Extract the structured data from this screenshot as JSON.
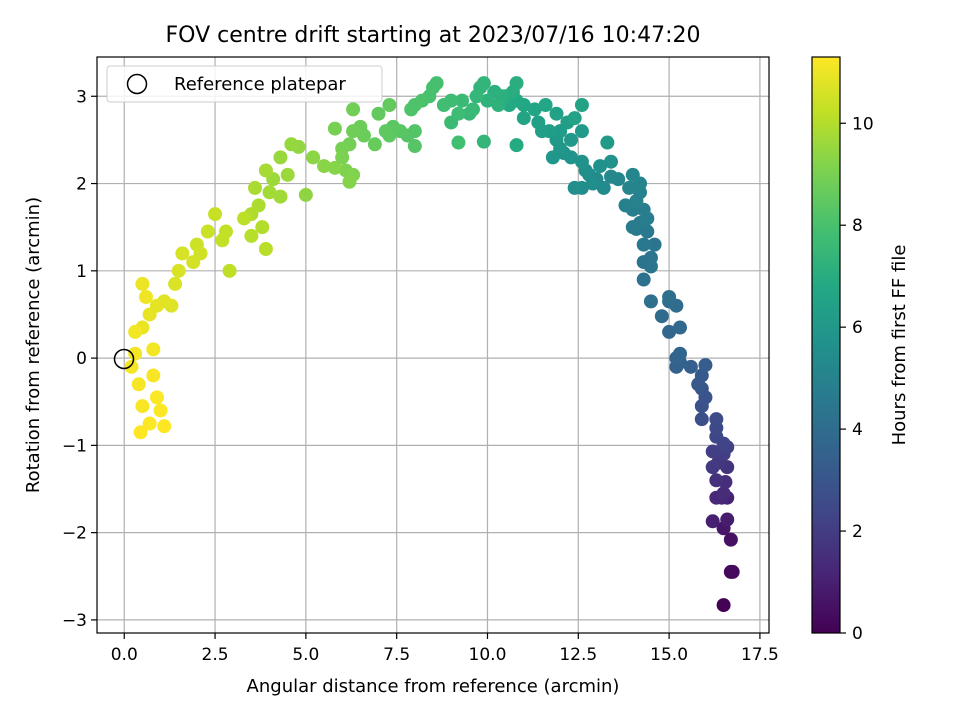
{
  "chart_data": {
    "type": "scatter",
    "title": "FOV centre drift starting at 2023/07/16 10:47:20",
    "xlabel": "Angular distance from reference (arcmin)",
    "ylabel": "Rotation from reference (arcmin)",
    "colorbar_label": "Hours from first FF file",
    "xlim": [
      -0.75,
      17.75
    ],
    "ylim": [
      -3.15,
      3.45
    ],
    "clim": [
      0,
      11.3
    ],
    "xticks": [
      0.0,
      2.5,
      5.0,
      7.5,
      10.0,
      12.5,
      15.0,
      17.5
    ],
    "xtick_labels": [
      "0.0",
      "2.5",
      "5.0",
      "7.5",
      "10.0",
      "12.5",
      "15.0",
      "17.5"
    ],
    "yticks": [
      -3,
      -2,
      -1,
      0,
      1,
      2,
      3
    ],
    "ytick_labels": [
      "−3",
      "−2",
      "−1",
      "0",
      "1",
      "2",
      "3"
    ],
    "cticks": [
      0,
      2,
      4,
      6,
      8,
      10
    ],
    "ctick_labels": [
      "0",
      "2",
      "4",
      "6",
      "8",
      "10"
    ],
    "colormap": "viridis",
    "grid": true,
    "legend": {
      "placement": "upper-left",
      "entries": [
        "Reference platepar"
      ]
    },
    "reference": {
      "x": 0,
      "y": 0,
      "label": "Reference platepar"
    },
    "series": [
      {
        "name": "FOV centre",
        "points": [
          [
            16.5,
            -2.83,
            0.05
          ],
          [
            16.7,
            -2.45,
            0.2
          ],
          [
            16.75,
            -2.45,
            0.3
          ],
          [
            16.7,
            -2.08,
            0.5
          ],
          [
            16.5,
            -1.95,
            0.7
          ],
          [
            16.6,
            -1.85,
            0.9
          ],
          [
            16.2,
            -1.87,
            1.0
          ],
          [
            16.6,
            -1.6,
            1.1
          ],
          [
            16.45,
            -1.6,
            1.2
          ],
          [
            16.3,
            -1.6,
            1.3
          ],
          [
            16.5,
            -1.55,
            1.4
          ],
          [
            16.55,
            -1.42,
            1.5
          ],
          [
            16.3,
            -1.4,
            1.6
          ],
          [
            16.6,
            -1.25,
            1.7
          ],
          [
            16.35,
            -1.2,
            1.8
          ],
          [
            16.2,
            -1.25,
            1.9
          ],
          [
            16.5,
            -1.1,
            2.0
          ],
          [
            16.2,
            -1.07,
            2.1
          ],
          [
            16.6,
            -1.02,
            2.2
          ],
          [
            16.5,
            -0.98,
            2.3
          ],
          [
            16.3,
            -0.9,
            2.4
          ],
          [
            16.3,
            -0.8,
            2.5
          ],
          [
            16.3,
            -0.7,
            2.6
          ],
          [
            15.9,
            -0.7,
            2.7
          ],
          [
            15.9,
            -0.55,
            2.8
          ],
          [
            16.0,
            -0.45,
            2.9
          ],
          [
            15.9,
            -0.35,
            3.0
          ],
          [
            15.8,
            -0.3,
            3.1
          ],
          [
            15.9,
            -0.2,
            3.2
          ],
          [
            16.0,
            -0.08,
            3.3
          ],
          [
            15.6,
            -0.1,
            3.4
          ],
          [
            15.2,
            -0.1,
            3.5
          ],
          [
            15.3,
            -0.05,
            3.55
          ],
          [
            15.2,
            0.0,
            3.6
          ],
          [
            15.3,
            0.05,
            3.65
          ],
          [
            15.0,
            0.3,
            3.7
          ],
          [
            15.3,
            0.35,
            3.8
          ],
          [
            14.8,
            0.48,
            3.9
          ],
          [
            15.2,
            0.6,
            4.0
          ],
          [
            15.0,
            0.65,
            4.05
          ],
          [
            15.0,
            0.7,
            4.1
          ],
          [
            14.5,
            0.65,
            4.15
          ],
          [
            14.3,
            0.9,
            4.2
          ],
          [
            14.5,
            1.05,
            4.3
          ],
          [
            14.3,
            1.1,
            4.35
          ],
          [
            14.5,
            1.15,
            4.4
          ],
          [
            14.6,
            1.3,
            4.45
          ],
          [
            14.3,
            1.3,
            4.5
          ],
          [
            14.4,
            1.45,
            4.55
          ],
          [
            14.1,
            1.48,
            4.6
          ],
          [
            14.0,
            1.5,
            4.65
          ],
          [
            14.2,
            1.55,
            4.7
          ],
          [
            14.4,
            1.6,
            4.75
          ],
          [
            14.3,
            1.7,
            4.8
          ],
          [
            14.0,
            1.7,
            4.85
          ],
          [
            13.8,
            1.75,
            4.9
          ],
          [
            14.1,
            1.8,
            4.95
          ],
          [
            14.2,
            1.9,
            5.0
          ],
          [
            13.9,
            1.95,
            5.05
          ],
          [
            14.2,
            2.0,
            5.1
          ],
          [
            14.0,
            2.1,
            5.15
          ],
          [
            13.6,
            2.05,
            5.2
          ],
          [
            13.4,
            2.08,
            5.25
          ],
          [
            13.0,
            2.05,
            5.3
          ],
          [
            13.2,
            1.95,
            5.35
          ],
          [
            12.8,
            2.1,
            5.4
          ],
          [
            12.6,
            1.95,
            5.45
          ],
          [
            12.9,
            2.0,
            5.5
          ],
          [
            12.4,
            1.95,
            5.55
          ],
          [
            12.7,
            2.15,
            5.6
          ],
          [
            13.1,
            2.2,
            5.65
          ],
          [
            13.4,
            2.25,
            5.7
          ],
          [
            12.6,
            2.25,
            5.75
          ],
          [
            12.3,
            2.3,
            5.8
          ],
          [
            12.1,
            2.35,
            5.85
          ],
          [
            11.8,
            2.3,
            5.9
          ],
          [
            12.0,
            2.4,
            5.95
          ],
          [
            12.3,
            2.5,
            6.0
          ],
          [
            11.9,
            2.5,
            6.05
          ],
          [
            12.6,
            2.6,
            6.1
          ],
          [
            13.3,
            2.47,
            6.15
          ],
          [
            12.0,
            2.6,
            6.2
          ],
          [
            11.7,
            2.6,
            6.25
          ],
          [
            12.2,
            2.7,
            6.3
          ],
          [
            11.5,
            2.6,
            6.35
          ],
          [
            11.4,
            2.7,
            6.4
          ],
          [
            11.9,
            2.8,
            6.45
          ],
          [
            12.4,
            2.75,
            6.5
          ],
          [
            12.6,
            2.9,
            6.55
          ],
          [
            11.0,
            2.75,
            6.6
          ],
          [
            11.3,
            2.85,
            6.65
          ],
          [
            11.6,
            2.9,
            6.7
          ],
          [
            11.0,
            2.9,
            6.75
          ],
          [
            10.8,
            2.95,
            6.8
          ],
          [
            10.6,
            2.9,
            6.85
          ],
          [
            10.8,
            2.44,
            6.9
          ],
          [
            10.5,
            3.0,
            6.95
          ],
          [
            10.7,
            3.05,
            7.0
          ],
          [
            10.8,
            3.15,
            7.05
          ],
          [
            10.4,
            3.0,
            7.1
          ],
          [
            10.2,
            3.05,
            7.15
          ],
          [
            10.3,
            2.9,
            7.2
          ],
          [
            10.0,
            2.95,
            7.25
          ],
          [
            9.8,
            3.1,
            7.3
          ],
          [
            9.9,
            3.15,
            7.35
          ],
          [
            9.9,
            2.48,
            7.4
          ],
          [
            9.7,
            3.0,
            7.45
          ],
          [
            9.5,
            2.8,
            7.5
          ],
          [
            9.6,
            2.85,
            7.55
          ],
          [
            9.3,
            2.95,
            7.6
          ],
          [
            9.0,
            2.7,
            7.65
          ],
          [
            9.2,
            2.8,
            7.7
          ],
          [
            9.0,
            2.95,
            7.75
          ],
          [
            8.8,
            2.9,
            7.8
          ],
          [
            9.2,
            2.47,
            7.85
          ],
          [
            8.6,
            3.15,
            7.9
          ],
          [
            8.5,
            3.1,
            7.95
          ],
          [
            8.4,
            3.0,
            8.0
          ],
          [
            8.2,
            2.95,
            8.05
          ],
          [
            8.0,
            2.9,
            8.1
          ],
          [
            7.9,
            2.85,
            8.15
          ],
          [
            8.0,
            2.6,
            8.2
          ],
          [
            7.8,
            2.55,
            8.25
          ],
          [
            8.0,
            2.43,
            8.3
          ],
          [
            7.6,
            2.6,
            8.35
          ],
          [
            7.4,
            2.65,
            8.4
          ],
          [
            7.3,
            2.55,
            8.45
          ],
          [
            7.2,
            2.6,
            8.5
          ],
          [
            7.0,
            2.8,
            8.55
          ],
          [
            7.3,
            2.9,
            8.6
          ],
          [
            6.9,
            2.45,
            8.65
          ],
          [
            6.6,
            2.55,
            8.7
          ],
          [
            6.5,
            2.65,
            8.75
          ],
          [
            6.3,
            2.6,
            8.8
          ],
          [
            6.3,
            2.85,
            8.85
          ],
          [
            6.2,
            2.45,
            8.9
          ],
          [
            6.0,
            2.4,
            8.95
          ],
          [
            5.8,
            2.63,
            9.0
          ],
          [
            6.0,
            2.3,
            9.05
          ],
          [
            6.1,
            2.15,
            9.1
          ],
          [
            6.3,
            2.1,
            9.15
          ],
          [
            6.2,
            2.02,
            9.2
          ],
          [
            5.8,
            2.18,
            9.25
          ],
          [
            5.5,
            2.2,
            9.3
          ],
          [
            5.2,
            2.3,
            9.35
          ],
          [
            5.0,
            1.87,
            9.4
          ],
          [
            4.8,
            2.42,
            9.45
          ],
          [
            4.6,
            2.45,
            9.5
          ],
          [
            4.3,
            2.3,
            9.55
          ],
          [
            4.5,
            2.1,
            9.6
          ],
          [
            4.1,
            2.05,
            9.65
          ],
          [
            4.3,
            1.85,
            9.7
          ],
          [
            4.0,
            1.9,
            9.75
          ],
          [
            3.9,
            2.15,
            9.8
          ],
          [
            3.6,
            1.95,
            9.85
          ],
          [
            3.7,
            1.75,
            9.9
          ],
          [
            3.5,
            1.65,
            9.95
          ],
          [
            3.8,
            1.5,
            10.0
          ],
          [
            3.5,
            1.4,
            10.05
          ],
          [
            3.9,
            1.25,
            10.1
          ],
          [
            3.3,
            1.6,
            10.15
          ],
          [
            2.9,
            1.0,
            10.2
          ],
          [
            2.8,
            1.45,
            10.25
          ],
          [
            2.7,
            1.35,
            10.3
          ],
          [
            2.5,
            1.65,
            10.35
          ],
          [
            2.3,
            1.45,
            10.4
          ],
          [
            2.0,
            1.3,
            10.45
          ],
          [
            2.1,
            1.2,
            10.5
          ],
          [
            1.9,
            1.1,
            10.55
          ],
          [
            1.6,
            1.2,
            10.6
          ],
          [
            1.5,
            1.0,
            10.65
          ],
          [
            1.4,
            0.85,
            10.7
          ],
          [
            1.3,
            0.6,
            10.75
          ],
          [
            1.1,
            0.65,
            10.8
          ],
          [
            0.9,
            0.6,
            10.85
          ],
          [
            0.7,
            0.5,
            10.9
          ],
          [
            0.5,
            0.35,
            10.95
          ],
          [
            0.5,
            0.85,
            11.0
          ],
          [
            0.6,
            0.7,
            11.05
          ],
          [
            0.3,
            0.3,
            11.1
          ],
          [
            0.8,
            0.1,
            11.12
          ],
          [
            0.3,
            0.05,
            11.14
          ],
          [
            0.2,
            -0.1,
            11.16
          ],
          [
            0.4,
            -0.3,
            11.18
          ],
          [
            0.8,
            -0.2,
            11.2
          ],
          [
            0.5,
            -0.55,
            11.22
          ],
          [
            0.9,
            -0.45,
            11.24
          ],
          [
            1.0,
            -0.6,
            11.26
          ],
          [
            0.7,
            -0.75,
            11.28
          ],
          [
            0.45,
            -0.85,
            11.3
          ],
          [
            1.1,
            -0.78,
            11.3
          ]
        ]
      }
    ]
  }
}
